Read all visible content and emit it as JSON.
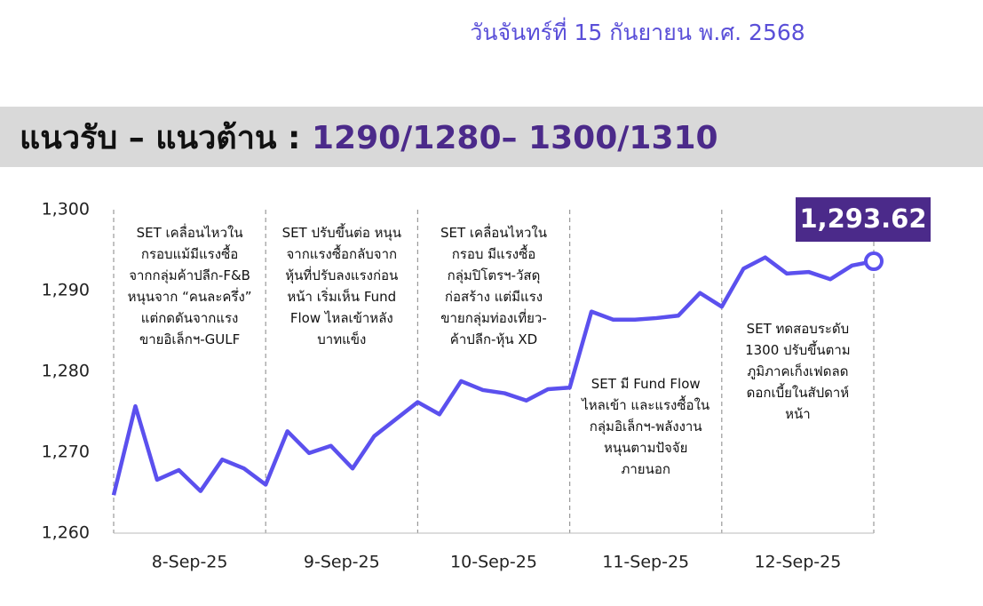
{
  "header": {
    "date": "วันจันทร์ที่ 15 กันยายน พ.ศ. 2568",
    "heading": "แนวรับ – แนวต้าน : ",
    "levels": "1290/1280– 1300/1310"
  },
  "chart_data": {
    "type": "line",
    "x": [
      0,
      1,
      2,
      3,
      4,
      5,
      6,
      7,
      8,
      9,
      10,
      11,
      12,
      13,
      14,
      15,
      16,
      17,
      18,
      19,
      20,
      21,
      22,
      23,
      24,
      25,
      26,
      27,
      28,
      29,
      30,
      31,
      32,
      33,
      34,
      35
    ],
    "xlim": [
      0,
      35
    ],
    "days": [
      "8-Sep-25",
      "9-Sep-25",
      "10-Sep-25",
      "11-Sep-25",
      "12-Sep-25"
    ],
    "series": [
      {
        "name": "SET",
        "color": "#5b50ee",
        "values": [
          1264.7,
          1275.7,
          1266.6,
          1267.8,
          1265.2,
          1269.1,
          1268.0,
          1266.0,
          1272.6,
          1269.9,
          1270.8,
          1268.0,
          1272.0,
          1274.1,
          1276.2,
          1274.7,
          1278.8,
          1277.7,
          1277.3,
          1276.4,
          1277.8,
          1278.0,
          1287.4,
          1286.4,
          1286.4,
          1286.6,
          1286.9,
          1289.7,
          1288.0,
          1292.7,
          1294.1,
          1292.1,
          1292.3,
          1291.4,
          1293.1,
          1293.62
        ],
        "value_labels": [
          null,
          null,
          null,
          null,
          null,
          null,
          null,
          null,
          null,
          null,
          null,
          null,
          null,
          null,
          null,
          null,
          null,
          null,
          null,
          null,
          null,
          null,
          null,
          null,
          null,
          null,
          null,
          null,
          null,
          null,
          null,
          null,
          null,
          null,
          null,
          "1,293.62"
        ]
      }
    ],
    "ylim": [
      1260,
      1300
    ],
    "yticks": [
      {
        "value": 1260,
        "label": "1,260"
      },
      {
        "value": 1270,
        "label": "1,270"
      },
      {
        "value": 1280,
        "label": "1,280"
      },
      {
        "value": 1290,
        "label": "1,290"
      },
      {
        "value": 1300,
        "label": "1,300"
      }
    ],
    "annotations": [
      [
        "SET เคลื่อนไหวใน",
        "กรอบแม้มีแรงซื้อ",
        "จากกลุ่มค้าปลีก-F&B",
        "หนุนจาก “คนละครึ่ง”",
        "แต่กดดันจากแรง",
        "ขายอิเล็กฯ-GULF"
      ],
      [
        "SET ปรับขึ้นต่อ หนุน",
        "จากแรงซื้อกลับจาก",
        "หุ้นที่ปรับลงแรงก่อน",
        "หน้า เริ่มเห็น Fund",
        "Flow ไหลเข้าหลัง",
        "บาทแข็ง"
      ],
      [
        "SET เคลื่อนไหวใน",
        "กรอบ มีแรงซื้อ",
        "กลุ่มปิโตรฯ-วัสดุ",
        "ก่อสร้าง แต่มีแรง",
        "ขายกลุ่มท่องเที่ยว-",
        "ค้าปลีก-หุ้น XD"
      ],
      [
        "SET มี Fund Flow",
        "ไหลเข้า และแรงซื้อใน",
        "กลุ่มอิเล็กฯ-พลังงาน",
        "หนุนตามปัจจัย",
        "ภายนอก"
      ],
      [
        "SET ทดสอบระดับ",
        "1300 ปรับขึ้นตาม",
        "ภูมิภาคเก็งเฟดลด",
        "ดอกเบี้ยในสัปดาห์",
        "หน้า"
      ]
    ]
  }
}
